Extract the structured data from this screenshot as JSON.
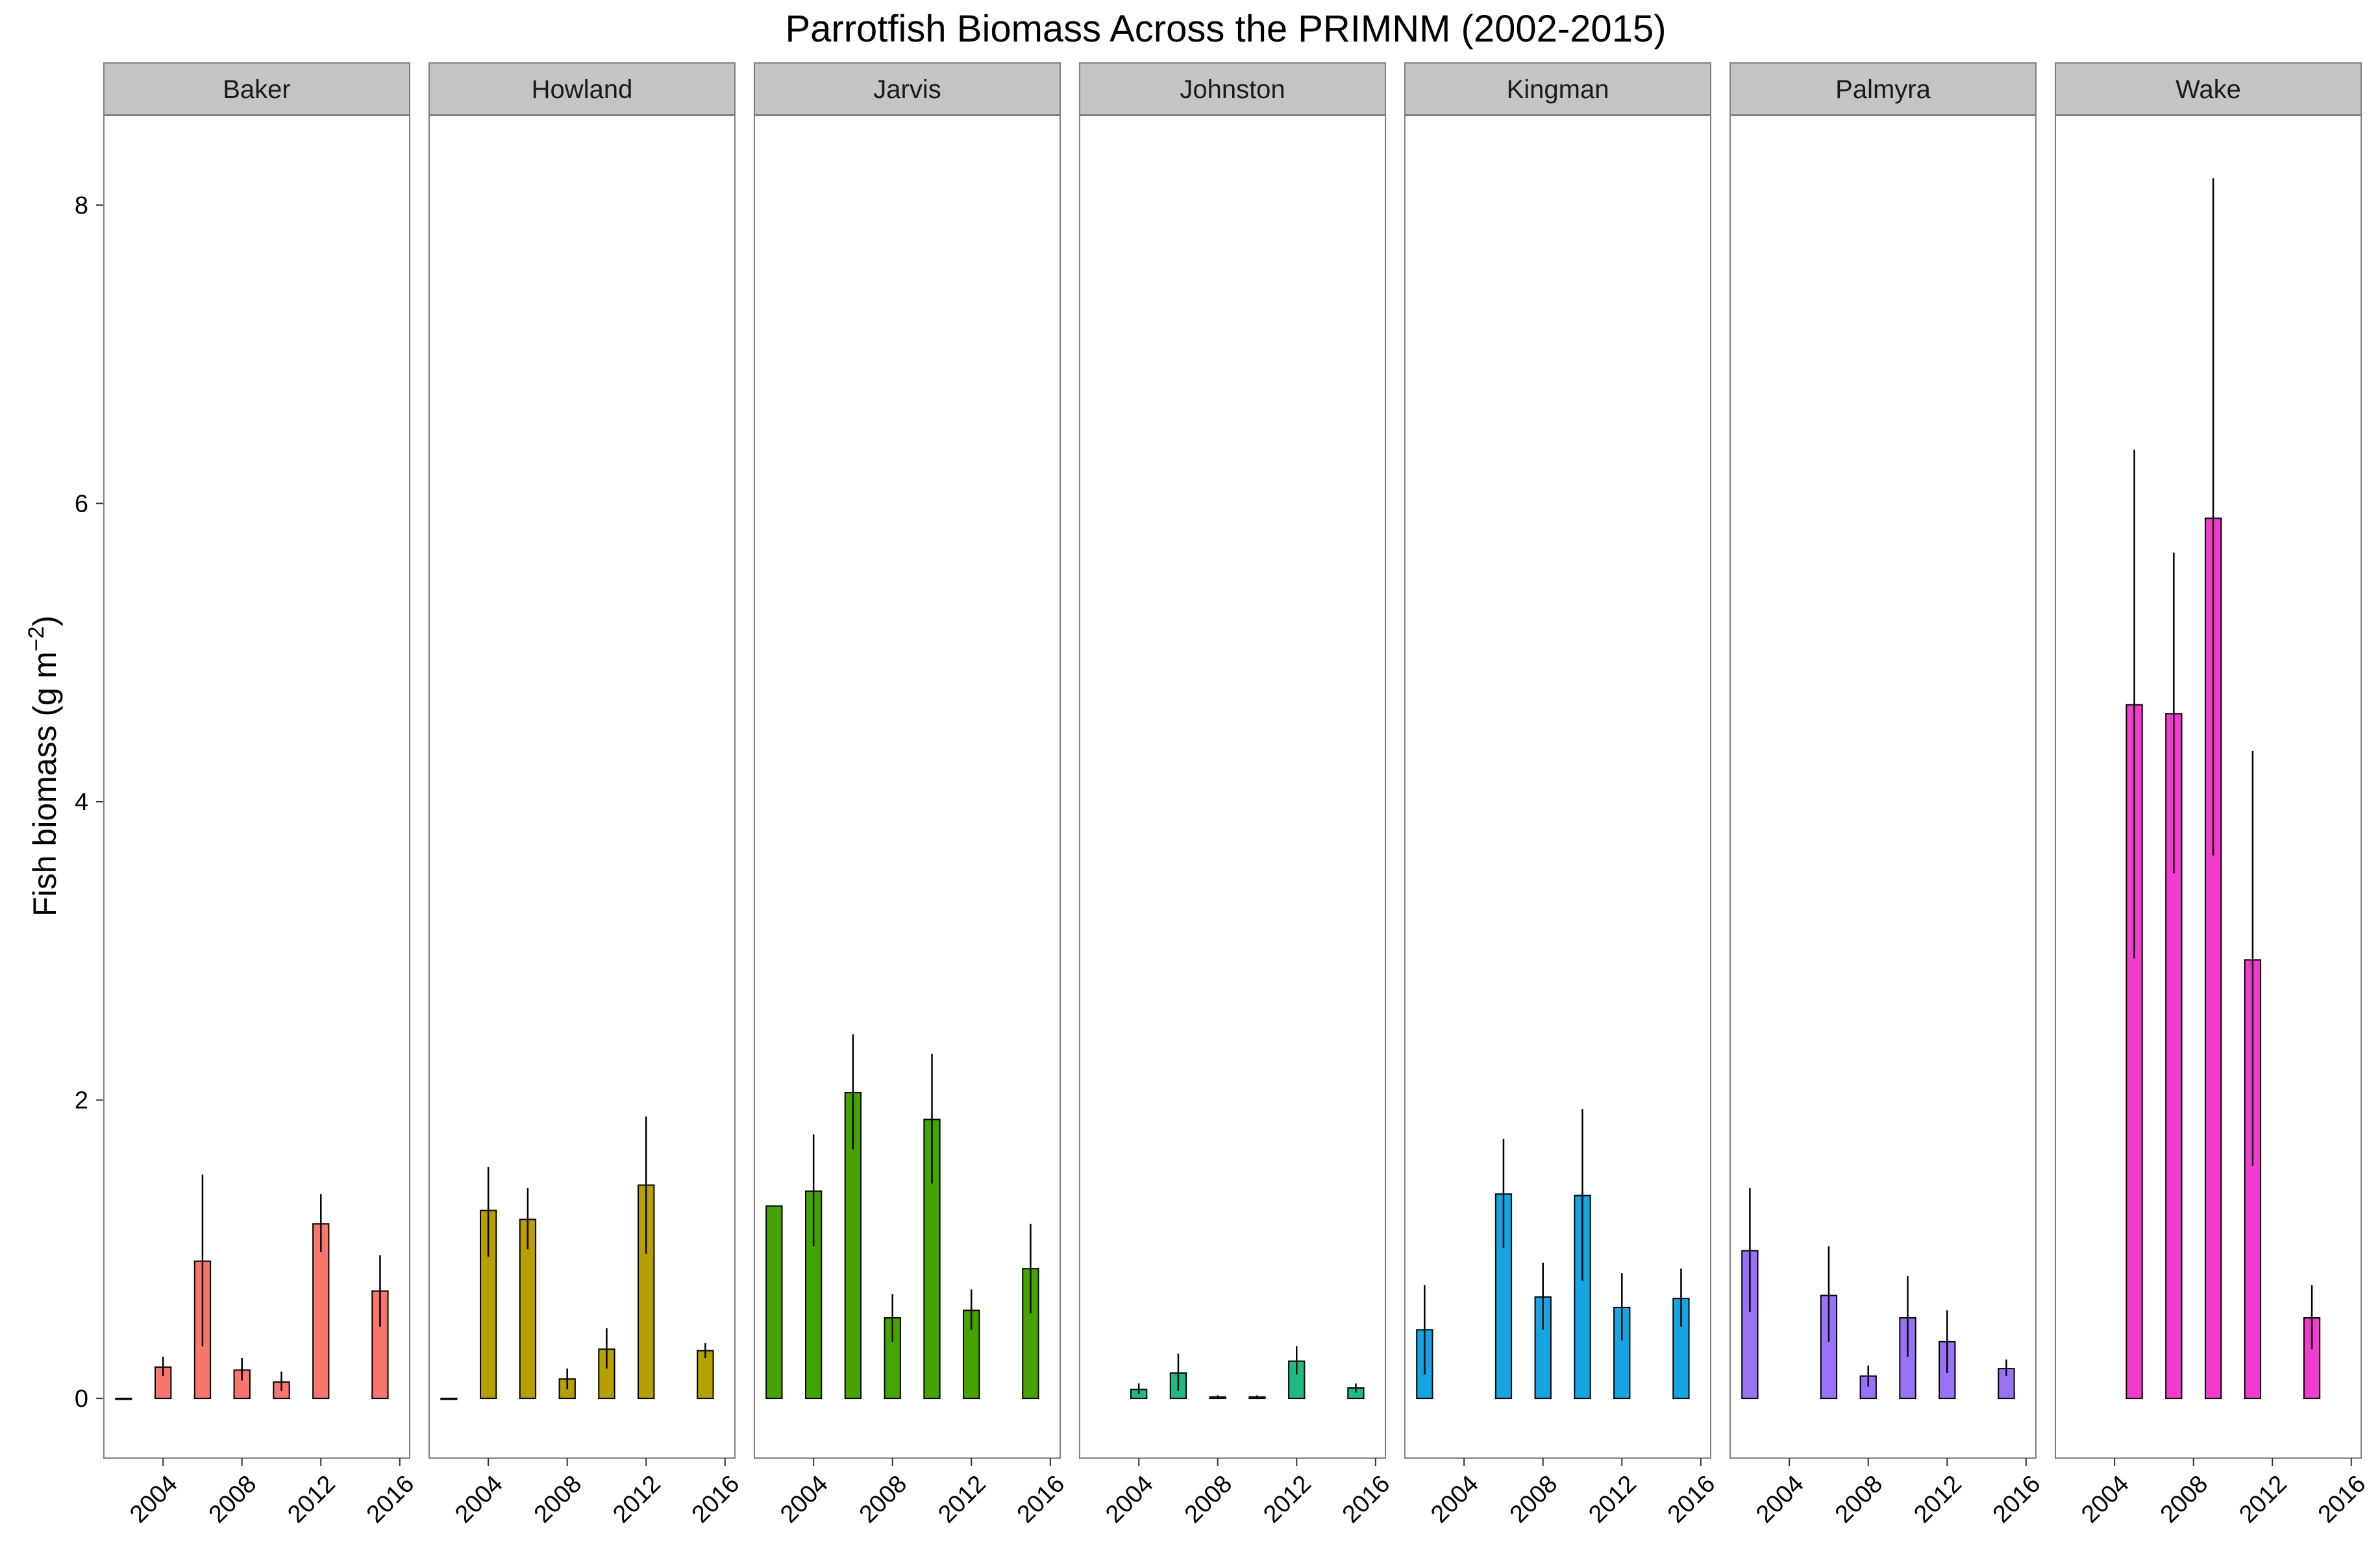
{
  "chart_data": {
    "type": "bar",
    "title": "Parrotfish Biomass Across the PRIMNM (2002-2015)",
    "ylabel": "Fish biomass (g m",
    "ylabel_sup": "−2",
    "ylabel_close": ")",
    "xlabel": "",
    "xlim": [
      2001,
      2016.5
    ],
    "ylim": [
      -0.4,
      8.6
    ],
    "x_ticks": [
      2004,
      2008,
      2012,
      2016
    ],
    "y_ticks": [
      0,
      2,
      4,
      6,
      8
    ],
    "grid": false,
    "legend": "none",
    "panels": [
      {
        "name": "Baker",
        "color": "#f8766d",
        "points": [
          {
            "x": 2002,
            "y": 0.0,
            "lo": 0.0,
            "hi": 0.0
          },
          {
            "x": 2004,
            "y": 0.21,
            "lo": 0.15,
            "hi": 0.28
          },
          {
            "x": 2006,
            "y": 0.92,
            "lo": 0.35,
            "hi": 1.5
          },
          {
            "x": 2008,
            "y": 0.19,
            "lo": 0.12,
            "hi": 0.27
          },
          {
            "x": 2010,
            "y": 0.11,
            "lo": 0.05,
            "hi": 0.18
          },
          {
            "x": 2012,
            "y": 1.17,
            "lo": 0.98,
            "hi": 1.37
          },
          {
            "x": 2015,
            "y": 0.72,
            "lo": 0.48,
            "hi": 0.96
          }
        ]
      },
      {
        "name": "Howland",
        "color": "#b79f00",
        "points": [
          {
            "x": 2002,
            "y": 0.0,
            "lo": 0.0,
            "hi": 0.0
          },
          {
            "x": 2004,
            "y": 1.26,
            "lo": 0.95,
            "hi": 1.55
          },
          {
            "x": 2006,
            "y": 1.2,
            "lo": 1.0,
            "hi": 1.41
          },
          {
            "x": 2008,
            "y": 0.13,
            "lo": 0.06,
            "hi": 0.2
          },
          {
            "x": 2010,
            "y": 0.33,
            "lo": 0.2,
            "hi": 0.47
          },
          {
            "x": 2012,
            "y": 1.43,
            "lo": 0.97,
            "hi": 1.89
          },
          {
            "x": 2015,
            "y": 0.32,
            "lo": 0.27,
            "hi": 0.37
          }
        ]
      },
      {
        "name": "Jarvis",
        "color": "#45a400",
        "points": [
          {
            "x": 2002,
            "y": 1.29,
            "lo": 1.29,
            "hi": 1.29
          },
          {
            "x": 2004,
            "y": 1.39,
            "lo": 1.02,
            "hi": 1.77
          },
          {
            "x": 2006,
            "y": 2.05,
            "lo": 1.67,
            "hi": 2.44
          },
          {
            "x": 2008,
            "y": 0.54,
            "lo": 0.38,
            "hi": 0.7
          },
          {
            "x": 2010,
            "y": 1.87,
            "lo": 1.44,
            "hi": 2.31
          },
          {
            "x": 2012,
            "y": 0.59,
            "lo": 0.46,
            "hi": 0.73
          },
          {
            "x": 2015,
            "y": 0.87,
            "lo": 0.57,
            "hi": 1.17
          }
        ]
      },
      {
        "name": "Johnston",
        "color": "#1dba82",
        "points": [
          {
            "x": 2004,
            "y": 0.06,
            "lo": 0.03,
            "hi": 0.1
          },
          {
            "x": 2006,
            "y": 0.17,
            "lo": 0.05,
            "hi": 0.3
          },
          {
            "x": 2008,
            "y": 0.01,
            "lo": 0.0,
            "hi": 0.02
          },
          {
            "x": 2010,
            "y": 0.01,
            "lo": 0.0,
            "hi": 0.02
          },
          {
            "x": 2012,
            "y": 0.25,
            "lo": 0.16,
            "hi": 0.35
          },
          {
            "x": 2015,
            "y": 0.07,
            "lo": 0.04,
            "hi": 0.1
          }
        ]
      },
      {
        "name": "Kingman",
        "color": "#16a5e3",
        "points": [
          {
            "x": 2002,
            "y": 0.46,
            "lo": 0.16,
            "hi": 0.76
          },
          {
            "x": 2006,
            "y": 1.37,
            "lo": 1.01,
            "hi": 1.74
          },
          {
            "x": 2008,
            "y": 0.68,
            "lo": 0.46,
            "hi": 0.91
          },
          {
            "x": 2010,
            "y": 1.36,
            "lo": 0.79,
            "hi": 1.94
          },
          {
            "x": 2012,
            "y": 0.61,
            "lo": 0.39,
            "hi": 0.84
          },
          {
            "x": 2015,
            "y": 0.67,
            "lo": 0.48,
            "hi": 0.87
          }
        ]
      },
      {
        "name": "Palmyra",
        "color": "#9973f5",
        "points": [
          {
            "x": 2002,
            "y": 0.99,
            "lo": 0.58,
            "hi": 1.41
          },
          {
            "x": 2006,
            "y": 0.69,
            "lo": 0.38,
            "hi": 1.02
          },
          {
            "x": 2008,
            "y": 0.15,
            "lo": 0.08,
            "hi": 0.22
          },
          {
            "x": 2010,
            "y": 0.54,
            "lo": 0.28,
            "hi": 0.82
          },
          {
            "x": 2012,
            "y": 0.38,
            "lo": 0.17,
            "hi": 0.59
          },
          {
            "x": 2015,
            "y": 0.2,
            "lo": 0.15,
            "hi": 0.26
          }
        ]
      },
      {
        "name": "Wake",
        "color": "#f23ccd",
        "points": [
          {
            "x": 2005,
            "y": 4.65,
            "lo": 2.95,
            "hi": 6.36
          },
          {
            "x": 2007,
            "y": 4.59,
            "lo": 3.52,
            "hi": 5.67
          },
          {
            "x": 2009,
            "y": 5.9,
            "lo": 3.64,
            "hi": 8.18
          },
          {
            "x": 2011,
            "y": 2.94,
            "lo": 1.56,
            "hi": 4.34
          },
          {
            "x": 2014,
            "y": 0.54,
            "lo": 0.33,
            "hi": 0.76
          }
        ]
      }
    ]
  }
}
